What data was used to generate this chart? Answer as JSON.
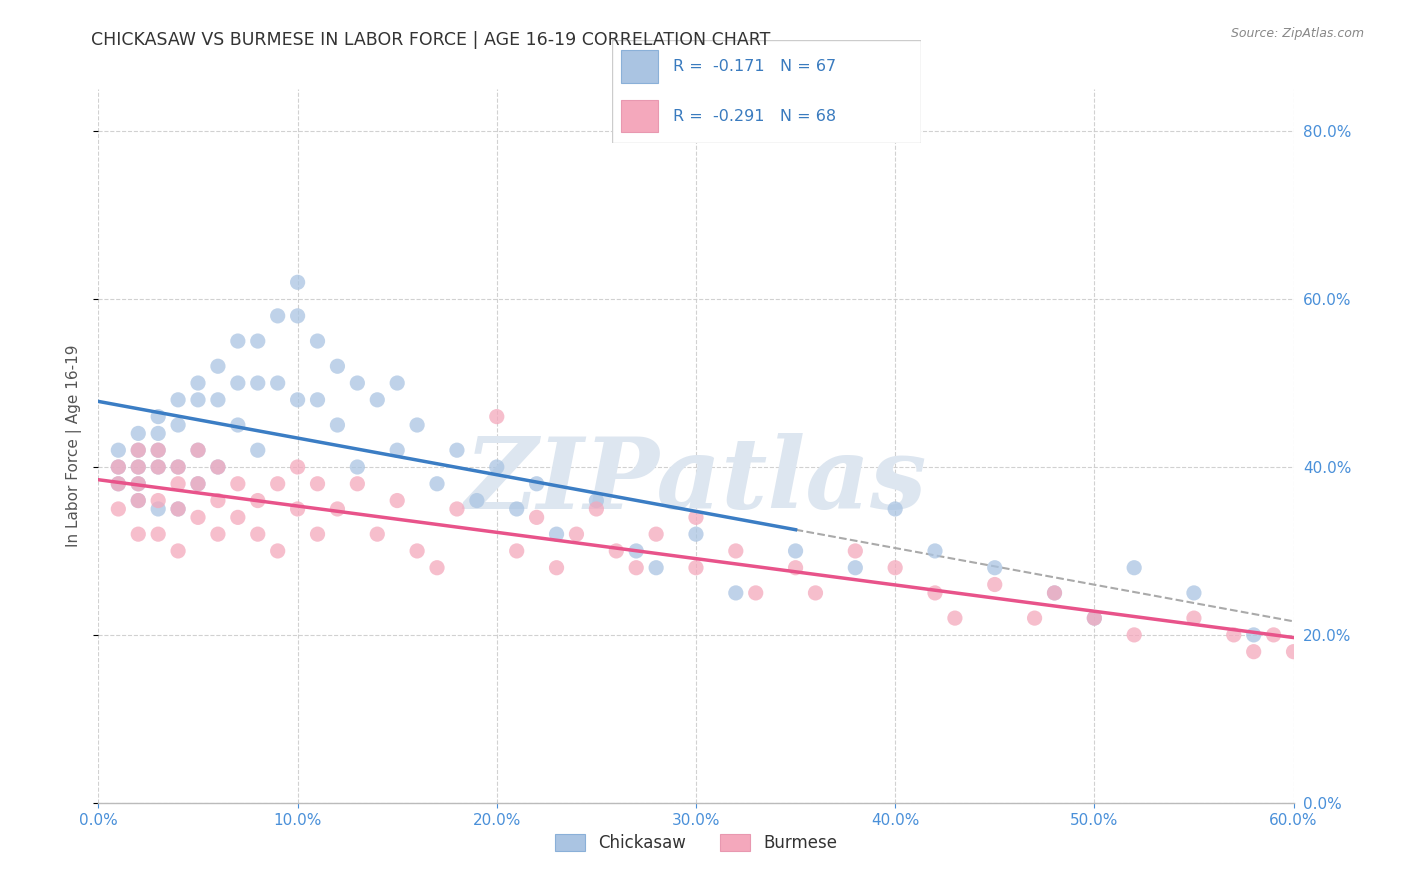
{
  "title": "CHICKASAW VS BURMESE IN LABOR FORCE | AGE 16-19 CORRELATION CHART",
  "source": "Source: ZipAtlas.com",
  "ylabel": "In Labor Force | Age 16-19",
  "xlim": [
    0.0,
    0.6
  ],
  "ylim": [
    0.0,
    0.85
  ],
  "chickasaw_color": "#aac4e2",
  "burmese_color": "#f4a8bc",
  "chickasaw_line_color": "#3b7dc4",
  "burmese_line_color": "#e8538a",
  "dashed_line_color": "#aaaaaa",
  "legend_text_color": "#3a7bbf",
  "R_chickasaw": -0.171,
  "N_chickasaw": 67,
  "R_burmese": -0.291,
  "N_burmese": 68,
  "chickasaw_x": [
    0.01,
    0.01,
    0.01,
    0.02,
    0.02,
    0.02,
    0.02,
    0.02,
    0.03,
    0.03,
    0.03,
    0.03,
    0.03,
    0.04,
    0.04,
    0.04,
    0.04,
    0.05,
    0.05,
    0.05,
    0.05,
    0.06,
    0.06,
    0.06,
    0.07,
    0.07,
    0.07,
    0.08,
    0.08,
    0.08,
    0.09,
    0.09,
    0.1,
    0.1,
    0.1,
    0.11,
    0.11,
    0.12,
    0.12,
    0.13,
    0.13,
    0.14,
    0.15,
    0.15,
    0.16,
    0.17,
    0.18,
    0.19,
    0.2,
    0.21,
    0.22,
    0.23,
    0.25,
    0.27,
    0.28,
    0.3,
    0.32,
    0.35,
    0.38,
    0.4,
    0.42,
    0.45,
    0.48,
    0.5,
    0.52,
    0.55,
    0.58
  ],
  "chickasaw_y": [
    0.42,
    0.4,
    0.38,
    0.44,
    0.42,
    0.4,
    0.38,
    0.36,
    0.46,
    0.44,
    0.42,
    0.4,
    0.35,
    0.48,
    0.45,
    0.4,
    0.35,
    0.5,
    0.48,
    0.42,
    0.38,
    0.52,
    0.48,
    0.4,
    0.55,
    0.5,
    0.45,
    0.55,
    0.5,
    0.42,
    0.58,
    0.5,
    0.62,
    0.58,
    0.48,
    0.55,
    0.48,
    0.52,
    0.45,
    0.5,
    0.4,
    0.48,
    0.5,
    0.42,
    0.45,
    0.38,
    0.42,
    0.36,
    0.4,
    0.35,
    0.38,
    0.32,
    0.36,
    0.3,
    0.28,
    0.32,
    0.25,
    0.3,
    0.28,
    0.35,
    0.3,
    0.28,
    0.25,
    0.22,
    0.28,
    0.25,
    0.2
  ],
  "burmese_x": [
    0.01,
    0.01,
    0.01,
    0.02,
    0.02,
    0.02,
    0.02,
    0.02,
    0.03,
    0.03,
    0.03,
    0.03,
    0.04,
    0.04,
    0.04,
    0.04,
    0.05,
    0.05,
    0.05,
    0.06,
    0.06,
    0.06,
    0.07,
    0.07,
    0.08,
    0.08,
    0.09,
    0.09,
    0.1,
    0.1,
    0.11,
    0.11,
    0.12,
    0.13,
    0.14,
    0.15,
    0.16,
    0.17,
    0.18,
    0.2,
    0.21,
    0.22,
    0.23,
    0.24,
    0.25,
    0.26,
    0.27,
    0.28,
    0.3,
    0.3,
    0.32,
    0.33,
    0.35,
    0.36,
    0.38,
    0.4,
    0.42,
    0.43,
    0.45,
    0.47,
    0.48,
    0.5,
    0.52,
    0.55,
    0.57,
    0.58,
    0.59,
    0.6
  ],
  "burmese_y": [
    0.4,
    0.38,
    0.35,
    0.42,
    0.4,
    0.38,
    0.36,
    0.32,
    0.42,
    0.4,
    0.36,
    0.32,
    0.4,
    0.38,
    0.35,
    0.3,
    0.42,
    0.38,
    0.34,
    0.4,
    0.36,
    0.32,
    0.38,
    0.34,
    0.36,
    0.32,
    0.38,
    0.3,
    0.4,
    0.35,
    0.38,
    0.32,
    0.35,
    0.38,
    0.32,
    0.36,
    0.3,
    0.28,
    0.35,
    0.46,
    0.3,
    0.34,
    0.28,
    0.32,
    0.35,
    0.3,
    0.28,
    0.32,
    0.34,
    0.28,
    0.3,
    0.25,
    0.28,
    0.25,
    0.3,
    0.28,
    0.25,
    0.22,
    0.26,
    0.22,
    0.25,
    0.22,
    0.2,
    0.22,
    0.2,
    0.18,
    0.2,
    0.18
  ],
  "background_color": "#ffffff",
  "grid_color": "#cccccc",
  "watermark_text": "ZIPatlas",
  "watermark_color": "#dde6f0"
}
